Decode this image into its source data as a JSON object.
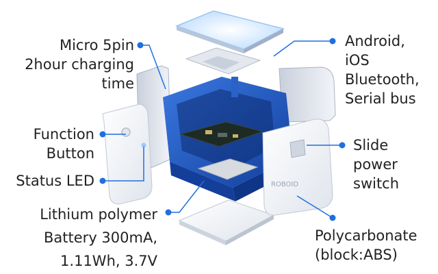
{
  "callouts": {
    "charging": {
      "lines": [
        "Micro 5pin",
        "2hour charging",
        "time"
      ]
    },
    "function_button": {
      "lines": [
        "Function",
        "Button"
      ]
    },
    "status_led": {
      "text": "Status LED"
    },
    "battery": {
      "lines": [
        "Lithium polymer",
        "Battery 300mA,",
        "1.11Wh, 3.7V"
      ]
    },
    "connectivity": {
      "lines": [
        "Android,",
        "iOS",
        "Bluetooth,",
        "Serial bus"
      ]
    },
    "power_switch": {
      "lines": [
        "Slide",
        "power",
        "switch"
      ]
    },
    "material": {
      "lines": [
        "Polycarbonate",
        "(block:ABS)"
      ]
    }
  },
  "device": {
    "side_panel_logo": "ROBOID"
  },
  "colors": {
    "frame_blue": "#1f56c4",
    "callout_blue": "#1e6fe0",
    "panel_white": "#eef1f6",
    "led_glow": "#cfe6ff",
    "pcb_dark": "#1d2b24",
    "text": "#222222"
  }
}
